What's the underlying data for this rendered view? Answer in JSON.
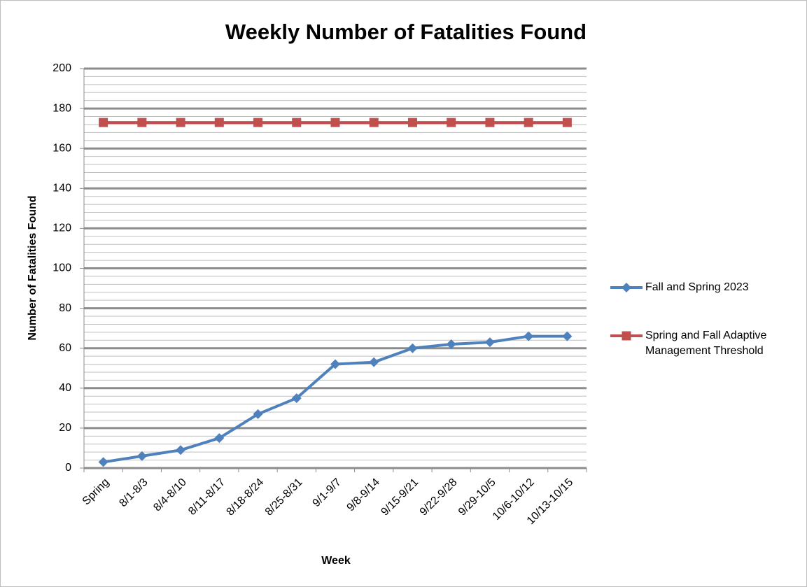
{
  "chart_data": {
    "type": "line",
    "title": "Weekly Number of Fatalities Found",
    "x_label": "Week",
    "y_label": "Number of Fatalities Found",
    "categories": [
      "Spring",
      "8/1-8/3",
      "8/4-8/10",
      "8/11-8/17",
      "8/18-8/24",
      "8/25-8/31",
      "9/1-9/7",
      "9/8-9/14",
      "9/15-9/21",
      "9/22-9/28",
      "9/29-10/5",
      "10/6-10/12",
      "10/13-10/15"
    ],
    "series": [
      {
        "name": "Fall and Spring 2023",
        "color": "#4f81bd",
        "marker": "diamond",
        "values": [
          3,
          6,
          9,
          15,
          27,
          35,
          52,
          53,
          60,
          62,
          63,
          66,
          66
        ]
      },
      {
        "name": "Spring and Fall Adaptive Management Threshold",
        "color": "#c0504d",
        "marker": "square",
        "values": [
          173,
          173,
          173,
          173,
          173,
          173,
          173,
          173,
          173,
          173,
          173,
          173,
          173
        ]
      }
    ],
    "ylim": [
      0,
      200
    ],
    "yticks": [
      0,
      20,
      40,
      60,
      80,
      100,
      120,
      140,
      160,
      180,
      200
    ],
    "grid": true,
    "minor_grid": true,
    "legend": "right"
  }
}
